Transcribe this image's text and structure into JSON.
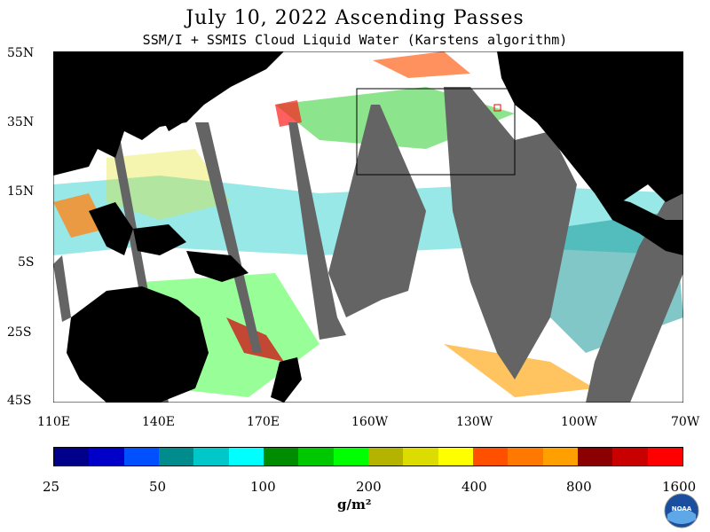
{
  "title": "July 10, 2022  Ascending Passes",
  "subtitle": "SSM/I + SSMIS Cloud Liquid Water (Karstens algorithm)",
  "lat_labels": [
    "55N",
    "35N",
    "15N",
    "5S",
    "25S",
    "45S"
  ],
  "lon_labels": [
    "110E",
    "140E",
    "170E",
    "160W",
    "130W",
    "100W",
    "70W"
  ],
  "colorbar": {
    "colors": [
      "#00008b",
      "#0000c8",
      "#0050ff",
      "#008c8c",
      "#00c8c8",
      "#00ffff",
      "#008c00",
      "#00c800",
      "#00ff00",
      "#b4b400",
      "#dcdc00",
      "#ffff00",
      "#ff5000",
      "#ff7800",
      "#ffa000",
      "#8b0000",
      "#c80000",
      "#ff0000"
    ],
    "tick_labels": [
      "25",
      "50",
      "100",
      "200",
      "400",
      "800",
      "1600"
    ]
  },
  "units": "g/m²",
  "logo": {
    "name": "NOAA"
  },
  "colors": {
    "land": "#000000",
    "ocean_no_cloud": "#ffffff",
    "no_data_gap": "#646464"
  }
}
